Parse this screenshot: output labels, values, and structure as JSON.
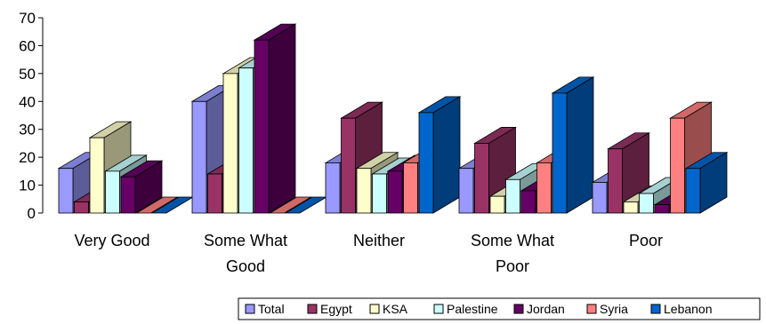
{
  "chart_data": {
    "type": "bar",
    "title": "",
    "xlabel": "",
    "ylabel": "",
    "ylim": [
      0,
      70
    ],
    "yticks": [
      0,
      10,
      20,
      30,
      40,
      50,
      60,
      70
    ],
    "categories": [
      [
        "Very Good"
      ],
      [
        "Some What",
        "Good"
      ],
      [
        "Neither"
      ],
      [
        "Some What",
        "Poor"
      ],
      [
        "Poor"
      ]
    ],
    "series": [
      {
        "name": "Total",
        "color": "#9999ff",
        "values": [
          16,
          40,
          18,
          16,
          11
        ]
      },
      {
        "name": "Egypt",
        "color": "#993366",
        "values": [
          4,
          14,
          34,
          25,
          23
        ]
      },
      {
        "name": "KSA",
        "color": "#ffffcc",
        "values": [
          27,
          50,
          16,
          6,
          4
        ]
      },
      {
        "name": "Palestine",
        "color": "#ccffff",
        "values": [
          15,
          52,
          14,
          12,
          7
        ]
      },
      {
        "name": "Jordan",
        "color": "#660066",
        "values": [
          13,
          62,
          15,
          8,
          3
        ]
      },
      {
        "name": "Syria",
        "color": "#ff8080",
        "values": [
          0,
          0,
          18,
          18,
          34
        ]
      },
      {
        "name": "Lebanon",
        "color": "#0066cc",
        "values": [
          0,
          0,
          36,
          43,
          16
        ]
      }
    ],
    "grid": false,
    "legend": "bottom-right"
  }
}
